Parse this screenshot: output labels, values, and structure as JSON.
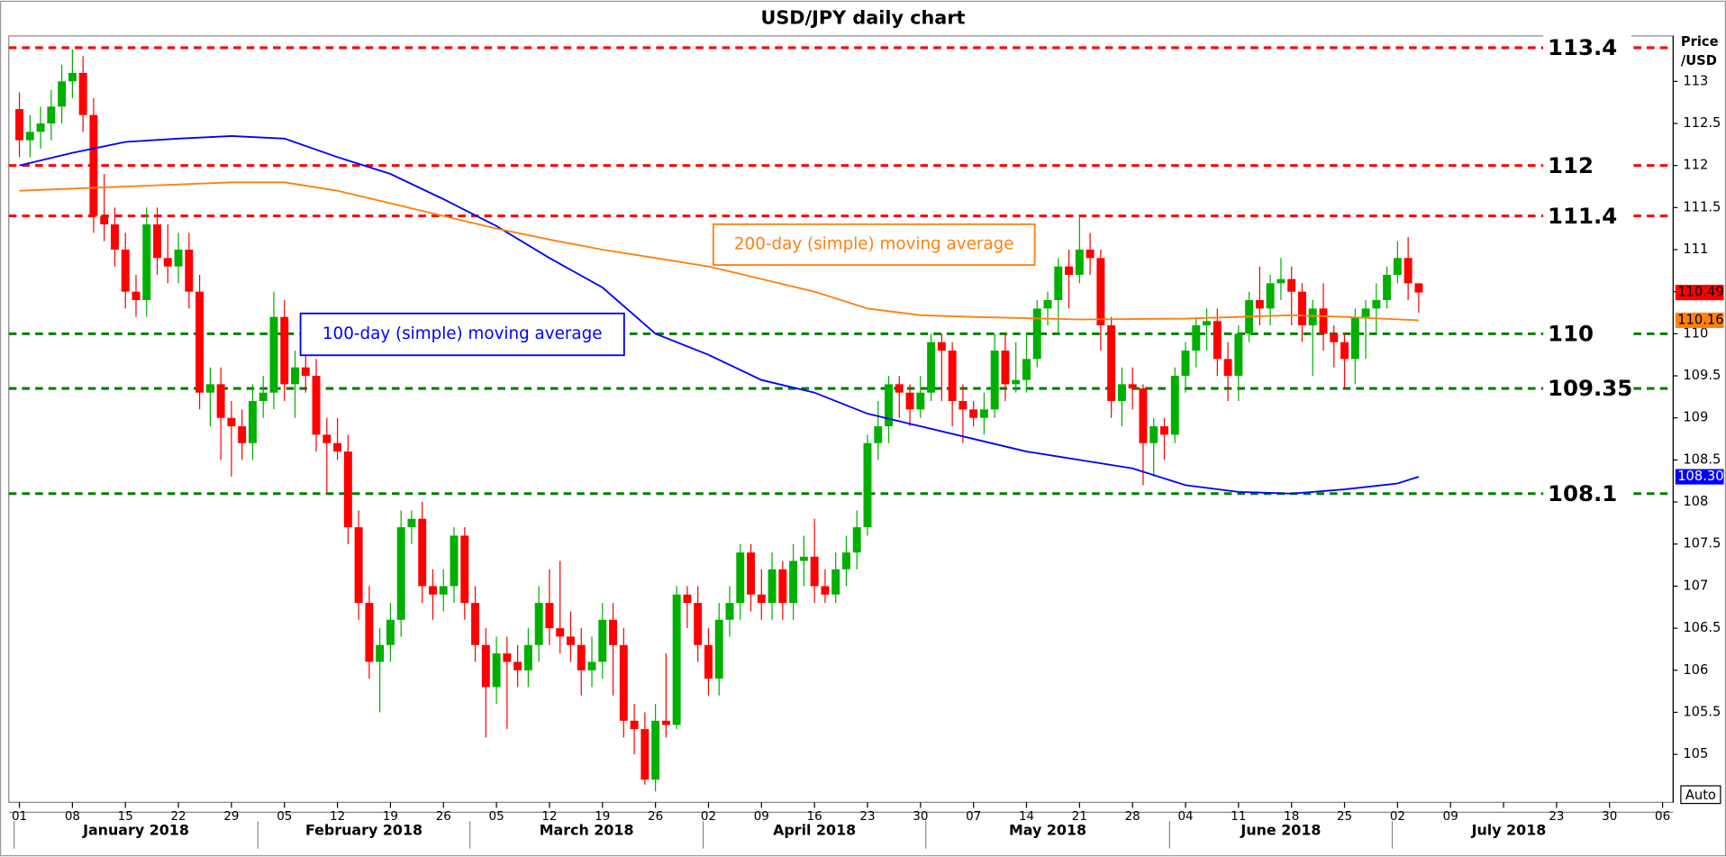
{
  "chart_data": {
    "type": "candlestick",
    "title": "USD/JPY daily chart",
    "ylabel": [
      "Price",
      "/USD"
    ],
    "button": "Auto",
    "up_color": "#00b000",
    "down_color": "#ff0000",
    "ylim": [
      104.43,
      113.54
    ],
    "yticks": [
      105,
      105.5,
      106,
      106.5,
      107,
      107.5,
      108,
      108.5,
      109,
      109.5,
      110,
      110.5,
      111,
      111.5,
      112,
      112.5,
      113
    ],
    "xlim": [
      -1,
      156
    ],
    "grid": false,
    "week_labels": [
      "01",
      "08",
      "15",
      "22",
      "29",
      "05",
      "12",
      "19",
      "26",
      "05",
      "12",
      "19",
      "26",
      "02",
      "09",
      "16",
      "23",
      "30",
      "07",
      "14",
      "21",
      "28",
      "04",
      "11",
      "18",
      "25",
      "02",
      "09",
      null,
      "23",
      "30",
      "06"
    ],
    "months": [
      "January 2018",
      "February 2018",
      "March 2018",
      "April 2018",
      "May 2018",
      "June 2018",
      "July 2018"
    ],
    "open": [
      112.67,
      112.3,
      112.4,
      112.5,
      112.7,
      113.0,
      113.1,
      112.6,
      111.4,
      111.3,
      111.0,
      110.5,
      110.4,
      111.3,
      110.9,
      110.8,
      111.0,
      110.5,
      109.3,
      109.4,
      109.0,
      108.9,
      108.7,
      109.2,
      109.3,
      110.2,
      109.4,
      109.6,
      109.5,
      108.8,
      108.7,
      108.6,
      107.7,
      106.8,
      106.1,
      106.3,
      106.6,
      107.7,
      107.8,
      107.0,
      106.9,
      107.0,
      107.6,
      106.8,
      106.3,
      105.8,
      106.2,
      106.1,
      106.0,
      106.3,
      106.8,
      106.5,
      106.4,
      106.3,
      106.0,
      106.1,
      106.6,
      106.3,
      105.4,
      105.3,
      104.7,
      105.4,
      105.35,
      106.9,
      106.8,
      106.3,
      105.9,
      106.6,
      106.8,
      107.4,
      106.9,
      106.8,
      107.2,
      106.8,
      107.3,
      107.35,
      107.0,
      106.9,
      107.2,
      107.4,
      107.7,
      108.7,
      108.9,
      109.4,
      109.3,
      109.1,
      109.3,
      109.9,
      109.8,
      109.2,
      109.1,
      109.0,
      109.1,
      109.8,
      109.4,
      109.45,
      109.7,
      110.3,
      110.4,
      110.8,
      110.7,
      111.0,
      110.9,
      110.1,
      109.2,
      109.4,
      109.35,
      108.7,
      108.9,
      108.8,
      109.5,
      109.8,
      110.1,
      110.15,
      109.7,
      109.5,
      110.0,
      110.4,
      110.3,
      110.6,
      110.65,
      110.5,
      110.1,
      110.3,
      110.0,
      109.9,
      109.7,
      110.2,
      110.3,
      110.4,
      110.7,
      110.9,
      110.6
    ],
    "high": [
      112.87,
      112.6,
      112.7,
      112.9,
      113.2,
      113.38,
      113.3,
      112.8,
      111.9,
      111.5,
      111.2,
      110.7,
      111.5,
      111.5,
      111.3,
      111.2,
      111.2,
      110.7,
      109.6,
      109.6,
      109.2,
      109.1,
      109.4,
      109.5,
      110.5,
      110.4,
      109.8,
      110.0,
      109.7,
      109.0,
      109.0,
      108.8,
      107.9,
      107.0,
      106.5,
      106.8,
      107.9,
      107.9,
      108.0,
      107.2,
      107.2,
      107.7,
      107.7,
      107.0,
      106.5,
      106.4,
      106.4,
      106.3,
      106.5,
      107.0,
      107.2,
      107.3,
      106.7,
      106.5,
      106.4,
      106.8,
      106.8,
      106.5,
      105.6,
      105.5,
      105.6,
      106.2,
      107.0,
      107.0,
      107.0,
      106.5,
      106.8,
      107.0,
      107.5,
      107.5,
      107.2,
      107.4,
      107.3,
      107.5,
      107.6,
      107.8,
      107.2,
      107.4,
      107.6,
      107.9,
      108.8,
      109.2,
      109.5,
      109.5,
      109.4,
      109.5,
      110.0,
      110.0,
      109.9,
      109.4,
      109.2,
      109.3,
      110.0,
      110.0,
      109.9,
      110.0,
      110.4,
      110.5,
      110.9,
      111.0,
      111.4,
      111.2,
      111.0,
      110.2,
      109.6,
      109.6,
      109.4,
      109.0,
      109.0,
      109.6,
      109.9,
      110.2,
      110.3,
      110.3,
      109.9,
      110.1,
      110.5,
      110.8,
      110.7,
      110.9,
      110.8,
      110.6,
      110.4,
      110.6,
      110.1,
      110.0,
      110.3,
      110.4,
      110.6,
      110.8,
      111.1,
      111.15,
      110.6
    ],
    "low": [
      112.1,
      112.1,
      112.2,
      112.3,
      112.5,
      112.8,
      112.4,
      111.2,
      111.1,
      110.8,
      110.3,
      110.2,
      110.2,
      110.7,
      110.6,
      110.6,
      110.3,
      109.1,
      108.9,
      108.5,
      108.3,
      108.5,
      108.5,
      109.0,
      109.1,
      109.2,
      109.0,
      109.3,
      108.6,
      108.1,
      108.5,
      107.5,
      106.6,
      105.9,
      105.5,
      106.1,
      106.4,
      107.5,
      106.8,
      106.6,
      106.7,
      106.8,
      106.6,
      106.1,
      105.2,
      105.6,
      105.3,
      105.8,
      105.8,
      106.1,
      106.3,
      106.2,
      106.1,
      105.7,
      105.8,
      105.9,
      105.7,
      105.2,
      105.0,
      104.64,
      104.56,
      105.2,
      105.3,
      106.5,
      106.1,
      105.7,
      105.7,
      106.4,
      106.6,
      106.7,
      106.6,
      106.6,
      106.6,
      106.6,
      107.0,
      106.8,
      106.8,
      106.8,
      107.0,
      107.2,
      107.6,
      108.5,
      108.7,
      109.0,
      108.9,
      109.0,
      109.2,
      109.2,
      108.9,
      108.7,
      108.9,
      108.8,
      109.0,
      109.2,
      109.3,
      109.3,
      109.6,
      110.1,
      110.0,
      110.3,
      110.6,
      110.7,
      109.8,
      109.0,
      108.9,
      109.1,
      108.2,
      108.3,
      108.5,
      108.7,
      109.3,
      109.6,
      109.8,
      109.5,
      109.2,
      109.2,
      109.9,
      110.1,
      110.1,
      110.4,
      110.1,
      109.9,
      109.5,
      109.8,
      109.6,
      109.35,
      109.4,
      109.7,
      110.0,
      110.3,
      110.6,
      110.4,
      110.25
    ],
    "close": [
      112.3,
      112.4,
      112.5,
      112.7,
      113.0,
      113.1,
      112.6,
      111.4,
      111.3,
      111.0,
      110.5,
      110.4,
      111.3,
      110.9,
      110.8,
      111.0,
      110.5,
      109.3,
      109.4,
      109.0,
      108.9,
      108.7,
      109.2,
      109.3,
      110.2,
      109.4,
      109.6,
      109.5,
      108.8,
      108.7,
      108.6,
      107.7,
      106.8,
      106.1,
      106.3,
      106.6,
      107.7,
      107.8,
      107.0,
      106.9,
      107.0,
      107.6,
      106.8,
      106.3,
      105.8,
      106.2,
      106.1,
      106.0,
      106.3,
      106.8,
      106.5,
      106.4,
      106.3,
      106.0,
      106.1,
      106.6,
      106.3,
      105.4,
      105.3,
      104.7,
      105.4,
      105.35,
      106.9,
      106.8,
      106.3,
      105.9,
      106.6,
      106.8,
      107.4,
      106.9,
      106.8,
      107.2,
      106.8,
      107.3,
      107.35,
      107.0,
      106.9,
      107.2,
      107.4,
      107.7,
      108.7,
      108.9,
      109.4,
      109.3,
      109.1,
      109.3,
      109.9,
      109.8,
      109.2,
      109.1,
      109.0,
      109.1,
      109.8,
      109.4,
      109.45,
      109.7,
      110.3,
      110.4,
      110.8,
      110.7,
      111.0,
      110.9,
      110.1,
      109.2,
      109.4,
      109.35,
      108.7,
      108.9,
      108.8,
      109.5,
      109.8,
      110.1,
      110.15,
      109.7,
      109.5,
      110.0,
      110.4,
      110.3,
      110.6,
      110.65,
      110.5,
      110.1,
      110.3,
      110.0,
      109.9,
      109.7,
      110.2,
      110.3,
      110.4,
      110.7,
      110.9,
      110.6,
      110.49
    ],
    "last_close_label": "110.49",
    "series": [
      {
        "name": "100-day (simple) moving average",
        "color": "#0000ff",
        "end_label": "108.30",
        "x": [
          0,
          5,
          10,
          15,
          20,
          25,
          30,
          35,
          40,
          45,
          50,
          55,
          60,
          65,
          70,
          75,
          80,
          85,
          90,
          95,
          100,
          105,
          110,
          115,
          120,
          125,
          130,
          132
        ],
        "values": [
          112.0,
          112.15,
          112.28,
          112.32,
          112.35,
          112.32,
          112.1,
          111.9,
          111.6,
          111.28,
          110.9,
          110.55,
          110.0,
          109.75,
          109.45,
          109.3,
          109.05,
          108.9,
          108.75,
          108.6,
          108.5,
          108.4,
          108.2,
          108.12,
          108.1,
          108.15,
          108.22,
          108.3
        ]
      },
      {
        "name": "200-day (simple) moving average",
        "color": "#ff7f0e",
        "end_label": "110.16",
        "x": [
          0,
          10,
          20,
          25,
          30,
          35,
          40,
          45,
          50,
          55,
          60,
          65,
          70,
          75,
          80,
          85,
          90,
          100,
          110,
          120,
          125,
          132
        ],
        "values": [
          111.7,
          111.75,
          111.8,
          111.8,
          111.7,
          111.55,
          111.4,
          111.25,
          111.12,
          111.0,
          110.9,
          110.8,
          110.65,
          110.5,
          110.3,
          110.22,
          110.2,
          110.17,
          110.18,
          110.22,
          110.2,
          110.16
        ]
      }
    ],
    "levels": [
      {
        "value": 113.4,
        "color": "#ff0000"
      },
      {
        "value": 112,
        "color": "#ff0000"
      },
      {
        "value": 111.4,
        "color": "#ff0000"
      },
      {
        "value": 110,
        "color": "#008000"
      },
      {
        "value": 109.35,
        "color": "#008000"
      },
      {
        "value": 108.1,
        "color": "#008000"
      }
    ]
  }
}
